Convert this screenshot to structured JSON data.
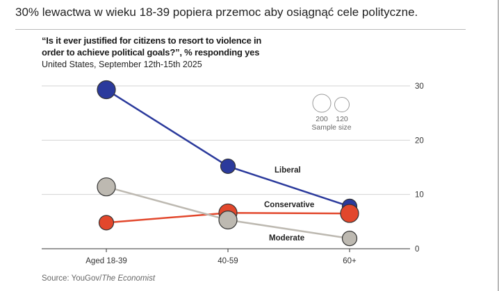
{
  "post": {
    "text": "30% lewactwa w wieku 18-39 popiera przemoc aby osiągnąć cele polityczne."
  },
  "chart_data": {
    "type": "line",
    "title_line1": "“Is it ever justified for citizens to resort to violence in",
    "title_line2": "order to achieve political goals?”, % responding yes",
    "subtitle": "United States, September 12th-15th 2025",
    "categories": [
      "Aged 18-39",
      "40-59",
      "60+"
    ],
    "ylim": [
      0,
      30
    ],
    "yticks": [
      "0",
      "10",
      "20",
      "30"
    ],
    "grid": true,
    "series": [
      {
        "name": "Liberal",
        "color": "#2b3a9c",
        "values": [
          29.3,
          15.2,
          7.8
        ],
        "sizes": [
          200,
          120,
          120
        ]
      },
      {
        "name": "Conservative",
        "color": "#e2472c",
        "values": [
          4.8,
          6.6,
          6.5
        ],
        "sizes": [
          120,
          200,
          200
        ]
      },
      {
        "name": "Moderate",
        "color": "#bdb9b1",
        "values": [
          11.4,
          5.3,
          1.9
        ],
        "sizes": [
          200,
          200,
          120
        ]
      }
    ],
    "sample_legend": {
      "large": "200",
      "small": "120",
      "label": "Sample size"
    },
    "source_prefix": "Source: YouGov/",
    "source_italic": "The Economist"
  }
}
